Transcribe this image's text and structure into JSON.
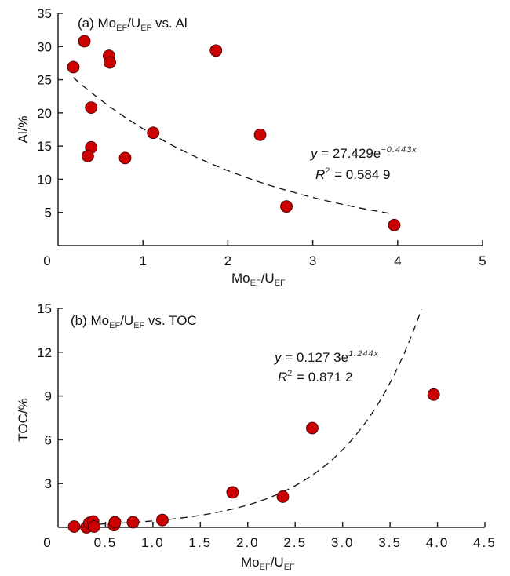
{
  "chart_data": [
    {
      "type": "scatter",
      "panel": "a",
      "title_parts": {
        "prefix": "(a) Mo",
        "sub1": "EF",
        "mid": "/U",
        "sub2": "EF",
        "suffix": " vs. Al"
      },
      "title": "(a) MoEF/UEF vs. Al",
      "xlabel": "MoEF/UEF",
      "xlabel_parts": {
        "main1": "Mo",
        "sub1": "EF",
        "main2": "/U",
        "sub2": "EF"
      },
      "ylabel": "Al/%",
      "xlim": [
        0,
        5
      ],
      "ylim": [
        0,
        35
      ],
      "xticks": [
        0,
        1,
        2,
        3,
        4,
        5
      ],
      "xtick_labels": [
        "0",
        "1",
        "2",
        "3",
        "4",
        "5"
      ],
      "yticks": [
        5,
        10,
        15,
        20,
        25,
        30,
        35
      ],
      "ytick_labels": [
        "5",
        "10",
        "15",
        "20",
        "25",
        "30",
        "35"
      ],
      "grid": false,
      "point_color": "#cc0000",
      "x": [
        0.18,
        0.31,
        0.6,
        0.61,
        0.39,
        0.39,
        0.35,
        0.79,
        1.12,
        1.86,
        2.38,
        2.69,
        3.96
      ],
      "y": [
        26.9,
        30.8,
        28.6,
        27.6,
        20.8,
        14.8,
        13.5,
        13.2,
        17.0,
        29.4,
        16.7,
        5.9,
        3.1
      ],
      "fit": {
        "type": "exponential",
        "a": 27.429,
        "b": -0.443,
        "x_range": [
          0.18,
          3.92
        ]
      },
      "equation": {
        "lhs": "y",
        "main": " = 27.429e",
        "exp": "−0.443x"
      },
      "r2": {
        "lhs": "R",
        "sup": "2",
        "main": " = 0.584 9"
      }
    },
    {
      "type": "scatter",
      "panel": "b",
      "title_parts": {
        "prefix": "(b) Mo",
        "sub1": "EF",
        "mid": "/U",
        "sub2": "EF",
        "suffix": " vs. TOC"
      },
      "title": "(b) MoEF/UEF vs. TOC",
      "xlabel": "MoEF/UEF",
      "xlabel_parts": {
        "main1": "Mo",
        "sub1": "EF",
        "main2": "/U",
        "sub2": "EF"
      },
      "ylabel": "TOC/%",
      "xlim": [
        0,
        4.5
      ],
      "ylim": [
        0,
        15
      ],
      "xticks": [
        0,
        0.5,
        1.0,
        1.5,
        2.0,
        2.5,
        3.0,
        3.5,
        4.0,
        4.5
      ],
      "xtick_labels": [
        "0",
        "0.5",
        "1.0",
        "1.5",
        "2.0",
        "2.5",
        "3.0",
        "3.5",
        "4.0",
        "4.5"
      ],
      "yticks": [
        3,
        6,
        9,
        12,
        15
      ],
      "ytick_labels": [
        "3",
        "6",
        "9",
        "12",
        "15"
      ],
      "grid": false,
      "point_color": "#cc0000",
      "x": [
        0.17,
        0.3,
        0.33,
        0.37,
        0.38,
        0.59,
        0.6,
        0.79,
        1.1,
        1.84,
        2.37,
        2.68,
        3.96
      ],
      "y": [
        0.05,
        0.0,
        0.3,
        0.4,
        0.05,
        0.15,
        0.35,
        0.35,
        0.5,
        2.4,
        2.1,
        6.8,
        9.1
      ],
      "fit": {
        "type": "exponential",
        "a": 0.1273,
        "b": 1.244,
        "x_range": [
          0.3,
          3.83
        ]
      },
      "equation": {
        "lhs": "y",
        "main": " = 0.127 3e",
        "exp": "1.244x"
      },
      "r2": {
        "lhs": "R",
        "sup": "2",
        "main": " = 0.871 2"
      }
    }
  ]
}
